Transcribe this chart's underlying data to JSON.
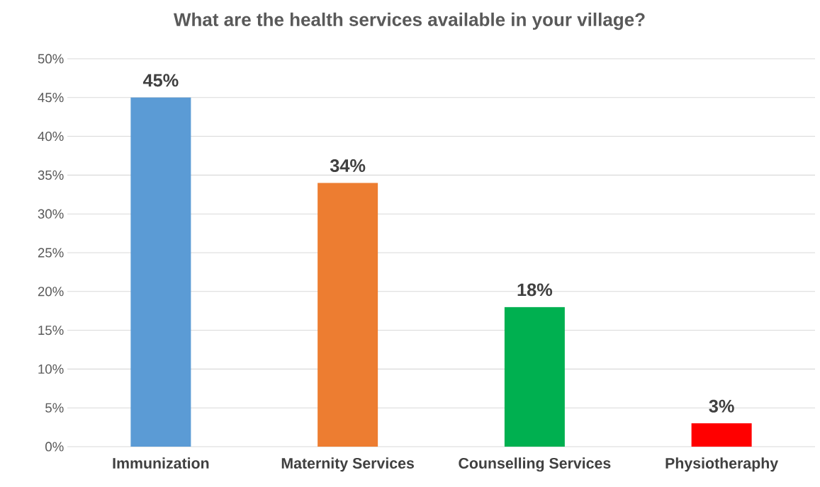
{
  "chart_data": {
    "type": "bar",
    "title": "What are the health services available in your village?",
    "categories": [
      "Immunization",
      "Maternity Services",
      "Counselling Services",
      "Physiotheraphy"
    ],
    "values": [
      45,
      34,
      18,
      3
    ],
    "colors": [
      "#5b9bd5",
      "#ed7d31",
      "#00b050",
      "#ff0000"
    ],
    "value_labels": [
      "45%",
      "34%",
      "18%",
      "3%"
    ],
    "ylim": [
      0,
      50
    ],
    "yticks": [
      {
        "value": 0,
        "label": "0%"
      },
      {
        "value": 5,
        "label": "5%"
      },
      {
        "value": 10,
        "label": "10%"
      },
      {
        "value": 15,
        "label": "15%"
      },
      {
        "value": 20,
        "label": "20%"
      },
      {
        "value": 25,
        "label": "25%"
      },
      {
        "value": 30,
        "label": "30%"
      },
      {
        "value": 35,
        "label": "35%"
      },
      {
        "value": 40,
        "label": "40%"
      },
      {
        "value": 45,
        "label": "45%"
      },
      {
        "value": 50,
        "label": "50%"
      }
    ],
    "grid": "y"
  }
}
